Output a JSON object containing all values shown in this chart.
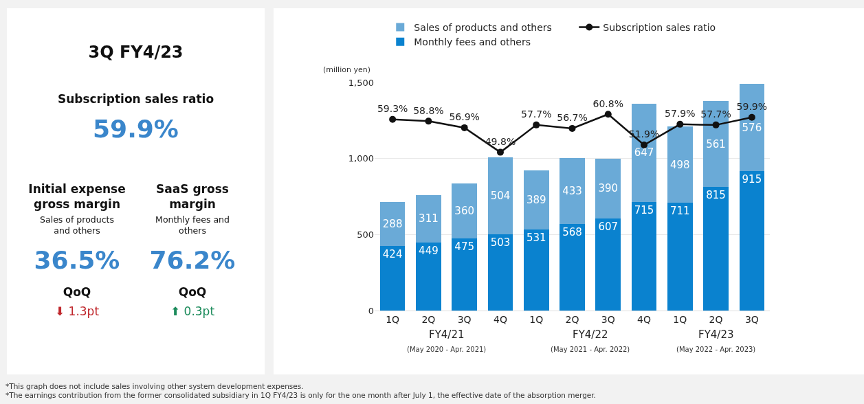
{
  "chart_data": [
    {
      "type": "other",
      "title": "3Q FY4/23",
      "annotations": [
        "Subscription sales ratio",
        "59.9%",
        "Initial expense gross margin",
        "Sales of products and others",
        "36.5%",
        "QoQ",
        "⬇ 1.3pt",
        "SaaS gross margin",
        "Monthly fees and others",
        "76.2%",
        "QoQ",
        "⬆ 0.3pt"
      ]
    },
    {
      "type": "bar",
      "stacked": true,
      "ylabel": "(million yen)",
      "categories": [
        "1Q",
        "2Q",
        "3Q",
        "4Q",
        "1Q",
        "2Q",
        "3Q",
        "4Q",
        "1Q",
        "2Q",
        "3Q"
      ],
      "series": [
        {
          "name": "Monthly fees and others",
          "color": "#0a82cf",
          "values": [
            424,
            449,
            475,
            503,
            531,
            568,
            607,
            715,
            711,
            815,
            915
          ]
        },
        {
          "name": "Sales of products and others",
          "color": "#6aaad7",
          "values": [
            288,
            311,
            360,
            504,
            389,
            433,
            390,
            647,
            498,
            561,
            576
          ]
        },
        {
          "name": "Subscription sales ratio",
          "type": "line",
          "axis": "y2",
          "color": "#111111",
          "marker": "circle",
          "values": [
            59.3,
            58.8,
            56.9,
            49.8,
            57.7,
            56.7,
            60.8,
            51.9,
            57.9,
            57.7,
            59.9
          ],
          "value_labels": [
            "59.3%",
            "58.8%",
            "56.9%",
            "49.8%",
            "57.7%",
            "56.7%",
            "60.8%",
            "51.9%",
            "57.9%",
            "57.7%",
            "59.9%"
          ]
        }
      ],
      "ylim": [
        0,
        1500
      ],
      "yticks": [
        0,
        500,
        {
          "value": 1000,
          "label": "1,000"
        },
        {
          "value": 1500,
          "label": "1,500"
        }
      ],
      "y2lim": [
        4,
        70
      ],
      "grid": "y",
      "legend": "top",
      "data_labels": true,
      "annotations": [
        "FY4/21",
        "(May 2020 - Apr. 2021)",
        "FY4/22",
        "(May 2021 - Apr. 2022)",
        "FY4/23",
        "(May 2022 - Apr. 2023)",
        "*This graph does not include sales involving other system development expenses.",
        "*The earnings contribution from the former consolidated subsidiary in 1Q FY4/23 is only for the one month after July 1, the effective date of the absorption merger."
      ]
    }
  ]
}
